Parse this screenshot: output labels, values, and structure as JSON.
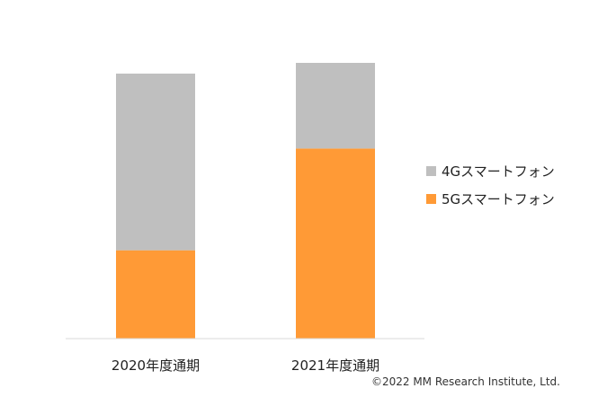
{
  "chart_data": {
    "type": "bar",
    "stacked": true,
    "categories": [
      "2020年度通期",
      "2021年度通期"
    ],
    "series": [
      {
        "name": "5Gスマートフォン",
        "color": "#FF9A36",
        "values": [
          33,
          71
        ]
      },
      {
        "name": "4Gスマートフォン",
        "color": "#BFBFBF",
        "values": [
          66,
          32
        ]
      }
    ],
    "ylim": [
      0,
      103
    ],
    "grid": false,
    "legend": {
      "position": "right",
      "order": [
        "4Gスマートフォン",
        "5Gスマートフォン"
      ]
    },
    "axis_color": "#D9D9D9"
  },
  "copyright": "©2022 MM Research Institute, Ltd."
}
